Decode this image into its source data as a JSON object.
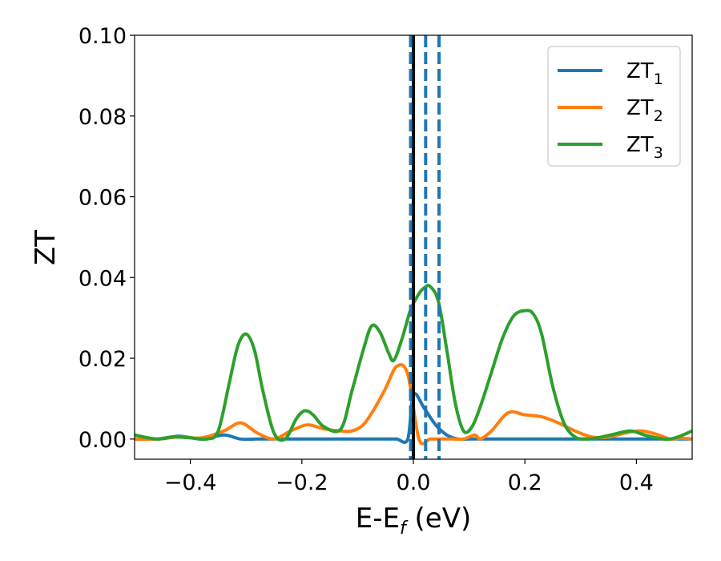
{
  "chart_data": {
    "type": "line",
    "xlabel": "E-E",
    "xlabel_subscript": "f",
    "xlabel_unit": " (eV)",
    "ylabel": "ZT",
    "xlim": [
      -0.5,
      0.5
    ],
    "ylim": [
      -0.005,
      0.1
    ],
    "xticks": [
      -0.4,
      -0.2,
      0.0,
      0.2,
      0.4
    ],
    "xtick_labels": [
      "−0.4",
      "−0.2",
      "0.0",
      "0.2",
      "0.4"
    ],
    "yticks": [
      0.0,
      0.02,
      0.04,
      0.06,
      0.08,
      0.1
    ],
    "ytick_labels": [
      "0.00",
      "0.02",
      "0.04",
      "0.06",
      "0.08",
      "0.10"
    ],
    "grid": false,
    "legend_position": "top-right",
    "vertical_lines": [
      {
        "x": 0.0,
        "style": "solid",
        "color": "#000000"
      },
      {
        "x": -0.005,
        "style": "dashed",
        "color": "#1f77b4"
      },
      {
        "x": 0.022,
        "style": "dashed",
        "color": "#1f77b4"
      },
      {
        "x": 0.046,
        "style": "dashed",
        "color": "#1f77b4"
      }
    ],
    "series": [
      {
        "name": "ZT",
        "subscript": "1",
        "color": "#1f77b4",
        "x": [
          -0.5,
          -0.46,
          -0.42,
          -0.38,
          -0.34,
          -0.31,
          -0.28,
          -0.26,
          -0.24,
          -0.2,
          -0.17,
          -0.14,
          -0.12,
          -0.1,
          -0.07,
          -0.05,
          -0.03,
          -0.01,
          0.0,
          0.02,
          0.04,
          0.06,
          0.08,
          0.1,
          0.12,
          0.14,
          0.17,
          0.2,
          0.24,
          0.27,
          0.3,
          0.33,
          0.36,
          0.39,
          0.42,
          0.46,
          0.5
        ],
        "y": [
          0.0,
          0.0,
          0.0007,
          0.0,
          0.001,
          0.0,
          0.0,
          0.0,
          0.0,
          0.0,
          0.0,
          0.0,
          0.0,
          0.0,
          0.0,
          0.0,
          0.0,
          0.0,
          0.011,
          0.0075,
          0.0035,
          0.001,
          0.0,
          0.0,
          0.0,
          0.0,
          0.0,
          0.0,
          0.0,
          0.0,
          0.0,
          0.0,
          0.0,
          0.0,
          0.0,
          0.0,
          0.0
        ]
      },
      {
        "name": "ZT",
        "subscript": "2",
        "color": "#ff7f0e",
        "x": [
          -0.5,
          -0.46,
          -0.42,
          -0.38,
          -0.34,
          -0.31,
          -0.28,
          -0.25,
          -0.22,
          -0.19,
          -0.16,
          -0.13,
          -0.11,
          -0.09,
          -0.07,
          -0.05,
          -0.03,
          -0.01,
          0.01,
          0.03,
          0.05,
          0.07,
          0.09,
          0.11,
          0.12,
          0.14,
          0.17,
          0.2,
          0.23,
          0.26,
          0.29,
          0.32,
          0.35,
          0.38,
          0.41,
          0.44,
          0.46,
          0.48,
          0.5
        ],
        "y": [
          0.0,
          0.0,
          0.0005,
          0.0003,
          0.002,
          0.004,
          0.0015,
          0.0,
          0.002,
          0.0035,
          0.0025,
          0.002,
          0.002,
          0.0035,
          0.0075,
          0.0125,
          0.018,
          0.016,
          0.0,
          0.0,
          0.0,
          0.0,
          0.0,
          0.001,
          0.0,
          0.002,
          0.0065,
          0.006,
          0.0055,
          0.004,
          0.002,
          0.0005,
          0.0005,
          0.0015,
          0.002,
          0.001,
          0.0,
          0.0002,
          0.0
        ]
      },
      {
        "name": "ZT",
        "subscript": "3",
        "color": "#2ca02c",
        "x": [
          -0.5,
          -0.46,
          -0.43,
          -0.4,
          -0.37,
          -0.35,
          -0.33,
          -0.315,
          -0.3,
          -0.285,
          -0.27,
          -0.25,
          -0.23,
          -0.21,
          -0.195,
          -0.18,
          -0.16,
          -0.13,
          -0.11,
          -0.09,
          -0.075,
          -0.06,
          -0.045,
          -0.035,
          -0.02,
          -0.005,
          0.01,
          0.02,
          0.03,
          0.045,
          0.06,
          0.075,
          0.09,
          0.105,
          0.12,
          0.14,
          0.16,
          0.18,
          0.2,
          0.215,
          0.23,
          0.25,
          0.27,
          0.29,
          0.31,
          0.33,
          0.36,
          0.39,
          0.42,
          0.46,
          0.5
        ],
        "y": [
          0.001,
          0.0,
          0.0005,
          0.0003,
          0.0,
          0.002,
          0.014,
          0.023,
          0.026,
          0.022,
          0.012,
          0.0015,
          0.0,
          0.005,
          0.007,
          0.006,
          0.003,
          0.0025,
          0.012,
          0.022,
          0.028,
          0.0265,
          0.0215,
          0.0195,
          0.025,
          0.032,
          0.036,
          0.0375,
          0.0378,
          0.034,
          0.022,
          0.009,
          0.002,
          0.003,
          0.008,
          0.0165,
          0.025,
          0.0305,
          0.0318,
          0.031,
          0.026,
          0.013,
          0.004,
          0.0005,
          0.0,
          0.0003,
          0.0012,
          0.002,
          0.0008,
          0.0,
          0.002
        ]
      }
    ]
  }
}
